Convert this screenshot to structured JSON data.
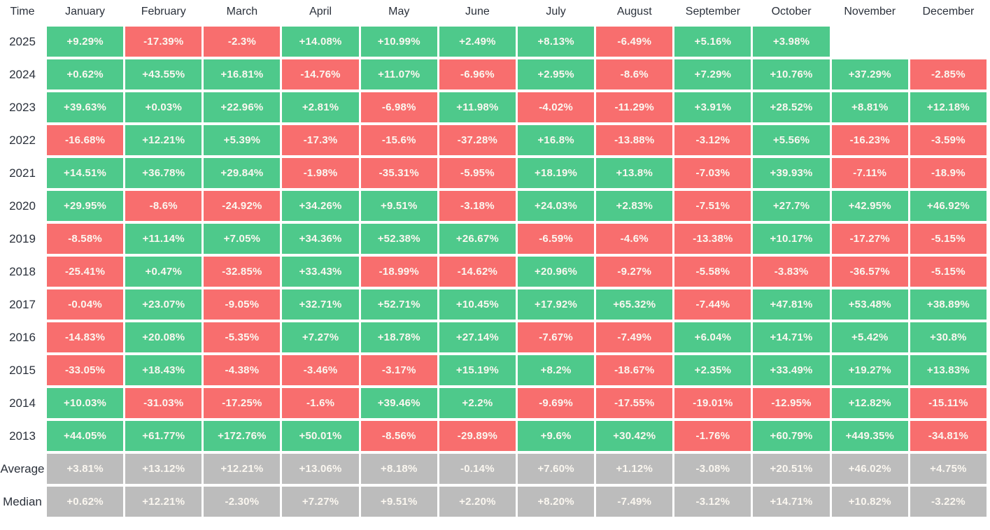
{
  "table": {
    "corner_label": "Time",
    "months": [
      "January",
      "February",
      "March",
      "April",
      "May",
      "June",
      "July",
      "August",
      "September",
      "October",
      "November",
      "December"
    ],
    "colors": {
      "positive": "#4ec98b",
      "negative": "#f86e6e",
      "neutral": "#bcbcbc",
      "label_text": "#2b313b",
      "cell_text": "#fbf7f0"
    },
    "rows": [
      {
        "label": "2025",
        "type": "year",
        "values": [
          "+9.29%",
          "-17.39%",
          "-2.3%",
          "+14.08%",
          "+10.99%",
          "+2.49%",
          "+8.13%",
          "-6.49%",
          "+5.16%",
          "+3.98%",
          "",
          ""
        ]
      },
      {
        "label": "2024",
        "type": "year",
        "values": [
          "+0.62%",
          "+43.55%",
          "+16.81%",
          "-14.76%",
          "+11.07%",
          "-6.96%",
          "+2.95%",
          "-8.6%",
          "+7.29%",
          "+10.76%",
          "+37.29%",
          "-2.85%"
        ]
      },
      {
        "label": "2023",
        "type": "year",
        "values": [
          "+39.63%",
          "+0.03%",
          "+22.96%",
          "+2.81%",
          "-6.98%",
          "+11.98%",
          "-4.02%",
          "-11.29%",
          "+3.91%",
          "+28.52%",
          "+8.81%",
          "+12.18%"
        ]
      },
      {
        "label": "2022",
        "type": "year",
        "values": [
          "-16.68%",
          "+12.21%",
          "+5.39%",
          "-17.3%",
          "-15.6%",
          "-37.28%",
          "+16.8%",
          "-13.88%",
          "-3.12%",
          "+5.56%",
          "-16.23%",
          "-3.59%"
        ]
      },
      {
        "label": "2021",
        "type": "year",
        "values": [
          "+14.51%",
          "+36.78%",
          "+29.84%",
          "-1.98%",
          "-35.31%",
          "-5.95%",
          "+18.19%",
          "+13.8%",
          "-7.03%",
          "+39.93%",
          "-7.11%",
          "-18.9%"
        ]
      },
      {
        "label": "2020",
        "type": "year",
        "values": [
          "+29.95%",
          "-8.6%",
          "-24.92%",
          "+34.26%",
          "+9.51%",
          "-3.18%",
          "+24.03%",
          "+2.83%",
          "-7.51%",
          "+27.7%",
          "+42.95%",
          "+46.92%"
        ]
      },
      {
        "label": "2019",
        "type": "year",
        "values": [
          "-8.58%",
          "+11.14%",
          "+7.05%",
          "+34.36%",
          "+52.38%",
          "+26.67%",
          "-6.59%",
          "-4.6%",
          "-13.38%",
          "+10.17%",
          "-17.27%",
          "-5.15%"
        ]
      },
      {
        "label": "2018",
        "type": "year",
        "values": [
          "-25.41%",
          "+0.47%",
          "-32.85%",
          "+33.43%",
          "-18.99%",
          "-14.62%",
          "+20.96%",
          "-9.27%",
          "-5.58%",
          "-3.83%",
          "-36.57%",
          "-5.15%"
        ]
      },
      {
        "label": "2017",
        "type": "year",
        "values": [
          "-0.04%",
          "+23.07%",
          "-9.05%",
          "+32.71%",
          "+52.71%",
          "+10.45%",
          "+17.92%",
          "+65.32%",
          "-7.44%",
          "+47.81%",
          "+53.48%",
          "+38.89%"
        ]
      },
      {
        "label": "2016",
        "type": "year",
        "values": [
          "-14.83%",
          "+20.08%",
          "-5.35%",
          "+7.27%",
          "+18.78%",
          "+27.14%",
          "-7.67%",
          "-7.49%",
          "+6.04%",
          "+14.71%",
          "+5.42%",
          "+30.8%"
        ]
      },
      {
        "label": "2015",
        "type": "year",
        "values": [
          "-33.05%",
          "+18.43%",
          "-4.38%",
          "-3.46%",
          "-3.17%",
          "+15.19%",
          "+8.2%",
          "-18.67%",
          "+2.35%",
          "+33.49%",
          "+19.27%",
          "+13.83%"
        ]
      },
      {
        "label": "2014",
        "type": "year",
        "values": [
          "+10.03%",
          "-31.03%",
          "-17.25%",
          "-1.6%",
          "+39.46%",
          "+2.2%",
          "-9.69%",
          "-17.55%",
          "-19.01%",
          "-12.95%",
          "+12.82%",
          "-15.11%"
        ]
      },
      {
        "label": "2013",
        "type": "year",
        "values": [
          "+44.05%",
          "+61.77%",
          "+172.76%",
          "+50.01%",
          "-8.56%",
          "-29.89%",
          "+9.6%",
          "+30.42%",
          "-1.76%",
          "+60.79%",
          "+449.35%",
          "-34.81%"
        ]
      },
      {
        "label": "Average",
        "type": "summary",
        "values": [
          "+3.81%",
          "+13.12%",
          "+12.21%",
          "+13.06%",
          "+8.18%",
          "-0.14%",
          "+7.60%",
          "+1.12%",
          "-3.08%",
          "+20.51%",
          "+46.02%",
          "+4.75%"
        ]
      },
      {
        "label": "Median",
        "type": "summary",
        "values": [
          "+0.62%",
          "+12.21%",
          "-2.30%",
          "+7.27%",
          "+9.51%",
          "+2.20%",
          "+8.20%",
          "-7.49%",
          "-3.12%",
          "+14.71%",
          "+10.82%",
          "-3.22%"
        ]
      }
    ]
  },
  "chart_data": {
    "type": "heatmap",
    "columns": [
      "January",
      "February",
      "March",
      "April",
      "May",
      "June",
      "July",
      "August",
      "September",
      "October",
      "November",
      "December"
    ],
    "rows": [
      "2025",
      "2024",
      "2023",
      "2022",
      "2021",
      "2020",
      "2019",
      "2018",
      "2017",
      "2016",
      "2015",
      "2014",
      "2013",
      "Average",
      "Median"
    ],
    "unit": "percent",
    "values": [
      [
        9.29,
        -17.39,
        -2.3,
        14.08,
        10.99,
        2.49,
        8.13,
        -6.49,
        5.16,
        3.98,
        null,
        null
      ],
      [
        0.62,
        43.55,
        16.81,
        -14.76,
        11.07,
        -6.96,
        2.95,
        -8.6,
        7.29,
        10.76,
        37.29,
        -2.85
      ],
      [
        39.63,
        0.03,
        22.96,
        2.81,
        -6.98,
        11.98,
        -4.02,
        -11.29,
        3.91,
        28.52,
        8.81,
        12.18
      ],
      [
        -16.68,
        12.21,
        5.39,
        -17.3,
        -15.6,
        -37.28,
        16.8,
        -13.88,
        -3.12,
        5.56,
        -16.23,
        -3.59
      ],
      [
        14.51,
        36.78,
        29.84,
        -1.98,
        -35.31,
        -5.95,
        18.19,
        13.8,
        -7.03,
        39.93,
        -7.11,
        -18.9
      ],
      [
        29.95,
        -8.6,
        -24.92,
        34.26,
        9.51,
        -3.18,
        24.03,
        2.83,
        -7.51,
        27.7,
        42.95,
        46.92
      ],
      [
        -8.58,
        11.14,
        7.05,
        34.36,
        52.38,
        26.67,
        -6.59,
        -4.6,
        -13.38,
        10.17,
        -17.27,
        -5.15
      ],
      [
        -25.41,
        0.47,
        -32.85,
        33.43,
        -18.99,
        -14.62,
        20.96,
        -9.27,
        -5.58,
        -3.83,
        -36.57,
        -5.15
      ],
      [
        -0.04,
        23.07,
        -9.05,
        32.71,
        52.71,
        10.45,
        17.92,
        65.32,
        -7.44,
        47.81,
        53.48,
        38.89
      ],
      [
        -14.83,
        20.08,
        -5.35,
        7.27,
        18.78,
        27.14,
        -7.67,
        -7.49,
        6.04,
        14.71,
        5.42,
        30.8
      ],
      [
        -33.05,
        18.43,
        -4.38,
        -3.46,
        -3.17,
        15.19,
        8.2,
        -18.67,
        2.35,
        33.49,
        19.27,
        13.83
      ],
      [
        10.03,
        -31.03,
        -17.25,
        -1.6,
        39.46,
        2.2,
        -9.69,
        -17.55,
        -19.01,
        -12.95,
        12.82,
        -15.11
      ],
      [
        44.05,
        61.77,
        172.76,
        50.01,
        -8.56,
        -29.89,
        9.6,
        30.42,
        -1.76,
        60.79,
        449.35,
        -34.81
      ],
      [
        3.81,
        13.12,
        12.21,
        13.06,
        8.18,
        -0.14,
        7.6,
        1.12,
        -3.08,
        20.51,
        46.02,
        4.75
      ],
      [
        0.62,
        12.21,
        -2.3,
        7.27,
        9.51,
        2.2,
        8.2,
        -7.49,
        -3.12,
        14.71,
        10.82,
        -3.22
      ]
    ],
    "legend": "cell color: green = positive month, red = negative month, gray = summary rows (Average/Median); 2025 November and December have no data",
    "grid": false
  }
}
